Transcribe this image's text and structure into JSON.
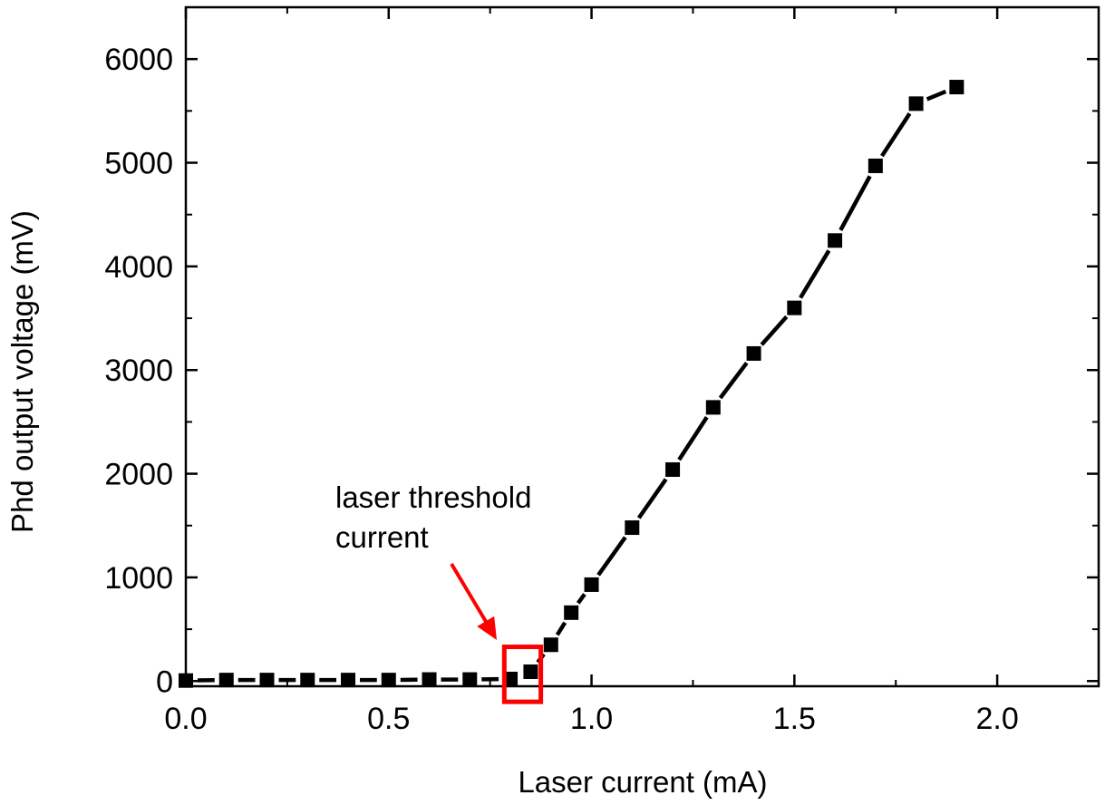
{
  "chart_data": {
    "type": "line",
    "title": "",
    "xlabel": "Laser current (mA)",
    "ylabel": "Phd output voltage (mV)",
    "xlim": [
      0,
      2.25
    ],
    "ylim": [
      -50,
      6500
    ],
    "x_ticks": [
      0.0,
      0.5,
      1.0,
      1.5,
      2.0
    ],
    "x_tick_labels": [
      "0.0",
      "0.5",
      "1.0",
      "1.5",
      "2.0"
    ],
    "y_ticks": [
      0,
      1000,
      2000,
      3000,
      4000,
      5000,
      6000
    ],
    "y_tick_labels": [
      "0",
      "1000",
      "2000",
      "3000",
      "4000",
      "5000",
      "6000"
    ],
    "grid": false,
    "legend": "none",
    "series": [
      {
        "marker": "square",
        "line_style": "solid",
        "color": "#000000",
        "x": [
          0.0,
          0.1,
          0.2,
          0.3,
          0.4,
          0.5,
          0.6,
          0.7,
          0.8,
          0.85,
          0.9,
          0.95,
          1.0,
          1.1,
          1.2,
          1.3,
          1.4,
          1.5,
          1.6,
          1.7,
          1.8,
          1.9
        ],
        "y": [
          5,
          10,
          10,
          10,
          10,
          10,
          15,
          15,
          20,
          90,
          350,
          660,
          930,
          1480,
          2040,
          2640,
          3160,
          3600,
          4250,
          4970,
          5570,
          5730
        ]
      }
    ],
    "annotations": [
      {
        "text_lines": [
          "laser threshold",
          "current"
        ],
        "color": "#ff0000",
        "highlight_box_x_range": [
          0.785,
          0.875
        ],
        "highlight_box_y_range": [
          -200,
          330
        ]
      }
    ]
  }
}
